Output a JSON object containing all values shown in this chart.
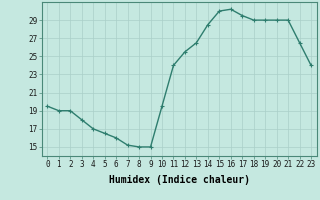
{
  "x": [
    0,
    1,
    2,
    3,
    4,
    5,
    6,
    7,
    8,
    9,
    10,
    11,
    12,
    13,
    14,
    15,
    16,
    17,
    18,
    19,
    20,
    21,
    22,
    23
  ],
  "y": [
    19.5,
    19.0,
    19.0,
    18.0,
    17.0,
    16.5,
    16.0,
    15.2,
    15.0,
    15.0,
    19.5,
    24.0,
    25.5,
    26.5,
    28.5,
    30.0,
    30.2,
    29.5,
    29.0,
    29.0,
    29.0,
    29.0,
    26.5,
    24.0
  ],
  "line_color": "#2e7d6e",
  "marker": "+",
  "marker_size": 3,
  "marker_lw": 0.8,
  "bg_color": "#c5e8e0",
  "grid_color": "#aacfc8",
  "xlabel": "Humidex (Indice chaleur)",
  "ylim": [
    14,
    31
  ],
  "xlim": [
    -0.5,
    23.5
  ],
  "yticks": [
    15,
    17,
    19,
    21,
    23,
    25,
    27,
    29
  ],
  "xticks": [
    0,
    1,
    2,
    3,
    4,
    5,
    6,
    7,
    8,
    9,
    10,
    11,
    12,
    13,
    14,
    15,
    16,
    17,
    18,
    19,
    20,
    21,
    22,
    23
  ],
  "tick_fontsize": 5.5,
  "xlabel_fontsize": 7,
  "linewidth": 1.0,
  "spine_color": "#4a8878"
}
